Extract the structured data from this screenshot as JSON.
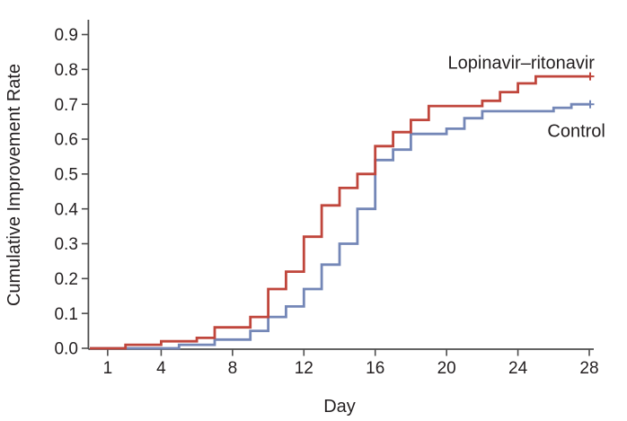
{
  "figure": {
    "background": "#ffffff",
    "text_color": "#231f20",
    "axis_color": "#4d4d4d"
  },
  "chart_data": {
    "type": "line",
    "line_style": "step-after",
    "title": "",
    "xlabel": "Day",
    "ylabel": "Cumulative Improvement Rate",
    "xlim": [
      0,
      28.4
    ],
    "ylim": [
      0,
      0.94
    ],
    "grid": false,
    "legend": "inline-annotations",
    "x_ticks": [
      1,
      4,
      8,
      12,
      16,
      20,
      24,
      28
    ],
    "x_tick_labels": [
      "1",
      "4",
      "8",
      "12",
      "16",
      "20",
      "24",
      "28"
    ],
    "y_ticks": [
      0,
      0.1,
      0.2,
      0.3,
      0.4,
      0.5,
      0.6,
      0.7,
      0.8,
      0.9
    ],
    "y_tick_labels": [
      "0.0",
      "0.1",
      "0.2",
      "0.3",
      "0.4",
      "0.5",
      "0.6",
      "0.7",
      "0.8",
      "0.9"
    ],
    "series": [
      {
        "name": "Control",
        "color": "#7487b7",
        "censored_at_end": true,
        "end_value": 0.7,
        "points": [
          [
            0,
            0
          ],
          [
            5,
            0.01
          ],
          [
            7,
            0.025
          ],
          [
            9,
            0.05
          ],
          [
            10,
            0.09
          ],
          [
            11,
            0.12
          ],
          [
            12,
            0.17
          ],
          [
            13,
            0.24
          ],
          [
            14,
            0.3
          ],
          [
            15,
            0.4
          ],
          [
            16,
            0.54
          ],
          [
            17,
            0.57
          ],
          [
            18,
            0.615
          ],
          [
            20,
            0.63
          ],
          [
            21,
            0.66
          ],
          [
            22,
            0.68
          ],
          [
            26,
            0.69
          ],
          [
            27,
            0.7
          ],
          [
            28,
            0.7
          ]
        ]
      },
      {
        "name": "Lopinavir–ritonavir",
        "color": "#c0463c",
        "censored_at_end": true,
        "end_value": 0.78,
        "points": [
          [
            0,
            0
          ],
          [
            2,
            0.01
          ],
          [
            4,
            0.02
          ],
          [
            6,
            0.03
          ],
          [
            7,
            0.06
          ],
          [
            9,
            0.09
          ],
          [
            10,
            0.17
          ],
          [
            11,
            0.22
          ],
          [
            12,
            0.32
          ],
          [
            13,
            0.41
          ],
          [
            14,
            0.46
          ],
          [
            15,
            0.5
          ],
          [
            16,
            0.58
          ],
          [
            17,
            0.62
          ],
          [
            18,
            0.655
          ],
          [
            19,
            0.695
          ],
          [
            22,
            0.71
          ],
          [
            23,
            0.735
          ],
          [
            24,
            0.76
          ],
          [
            25,
            0.78
          ],
          [
            28,
            0.78
          ]
        ]
      }
    ],
    "annotations": [
      {
        "text": "Lopinavir–ritonavir",
        "x": 28.3,
        "y": 0.802,
        "anchor": "end"
      },
      {
        "text": "Control",
        "x": 28.9,
        "y": 0.607,
        "anchor": "end"
      }
    ]
  }
}
